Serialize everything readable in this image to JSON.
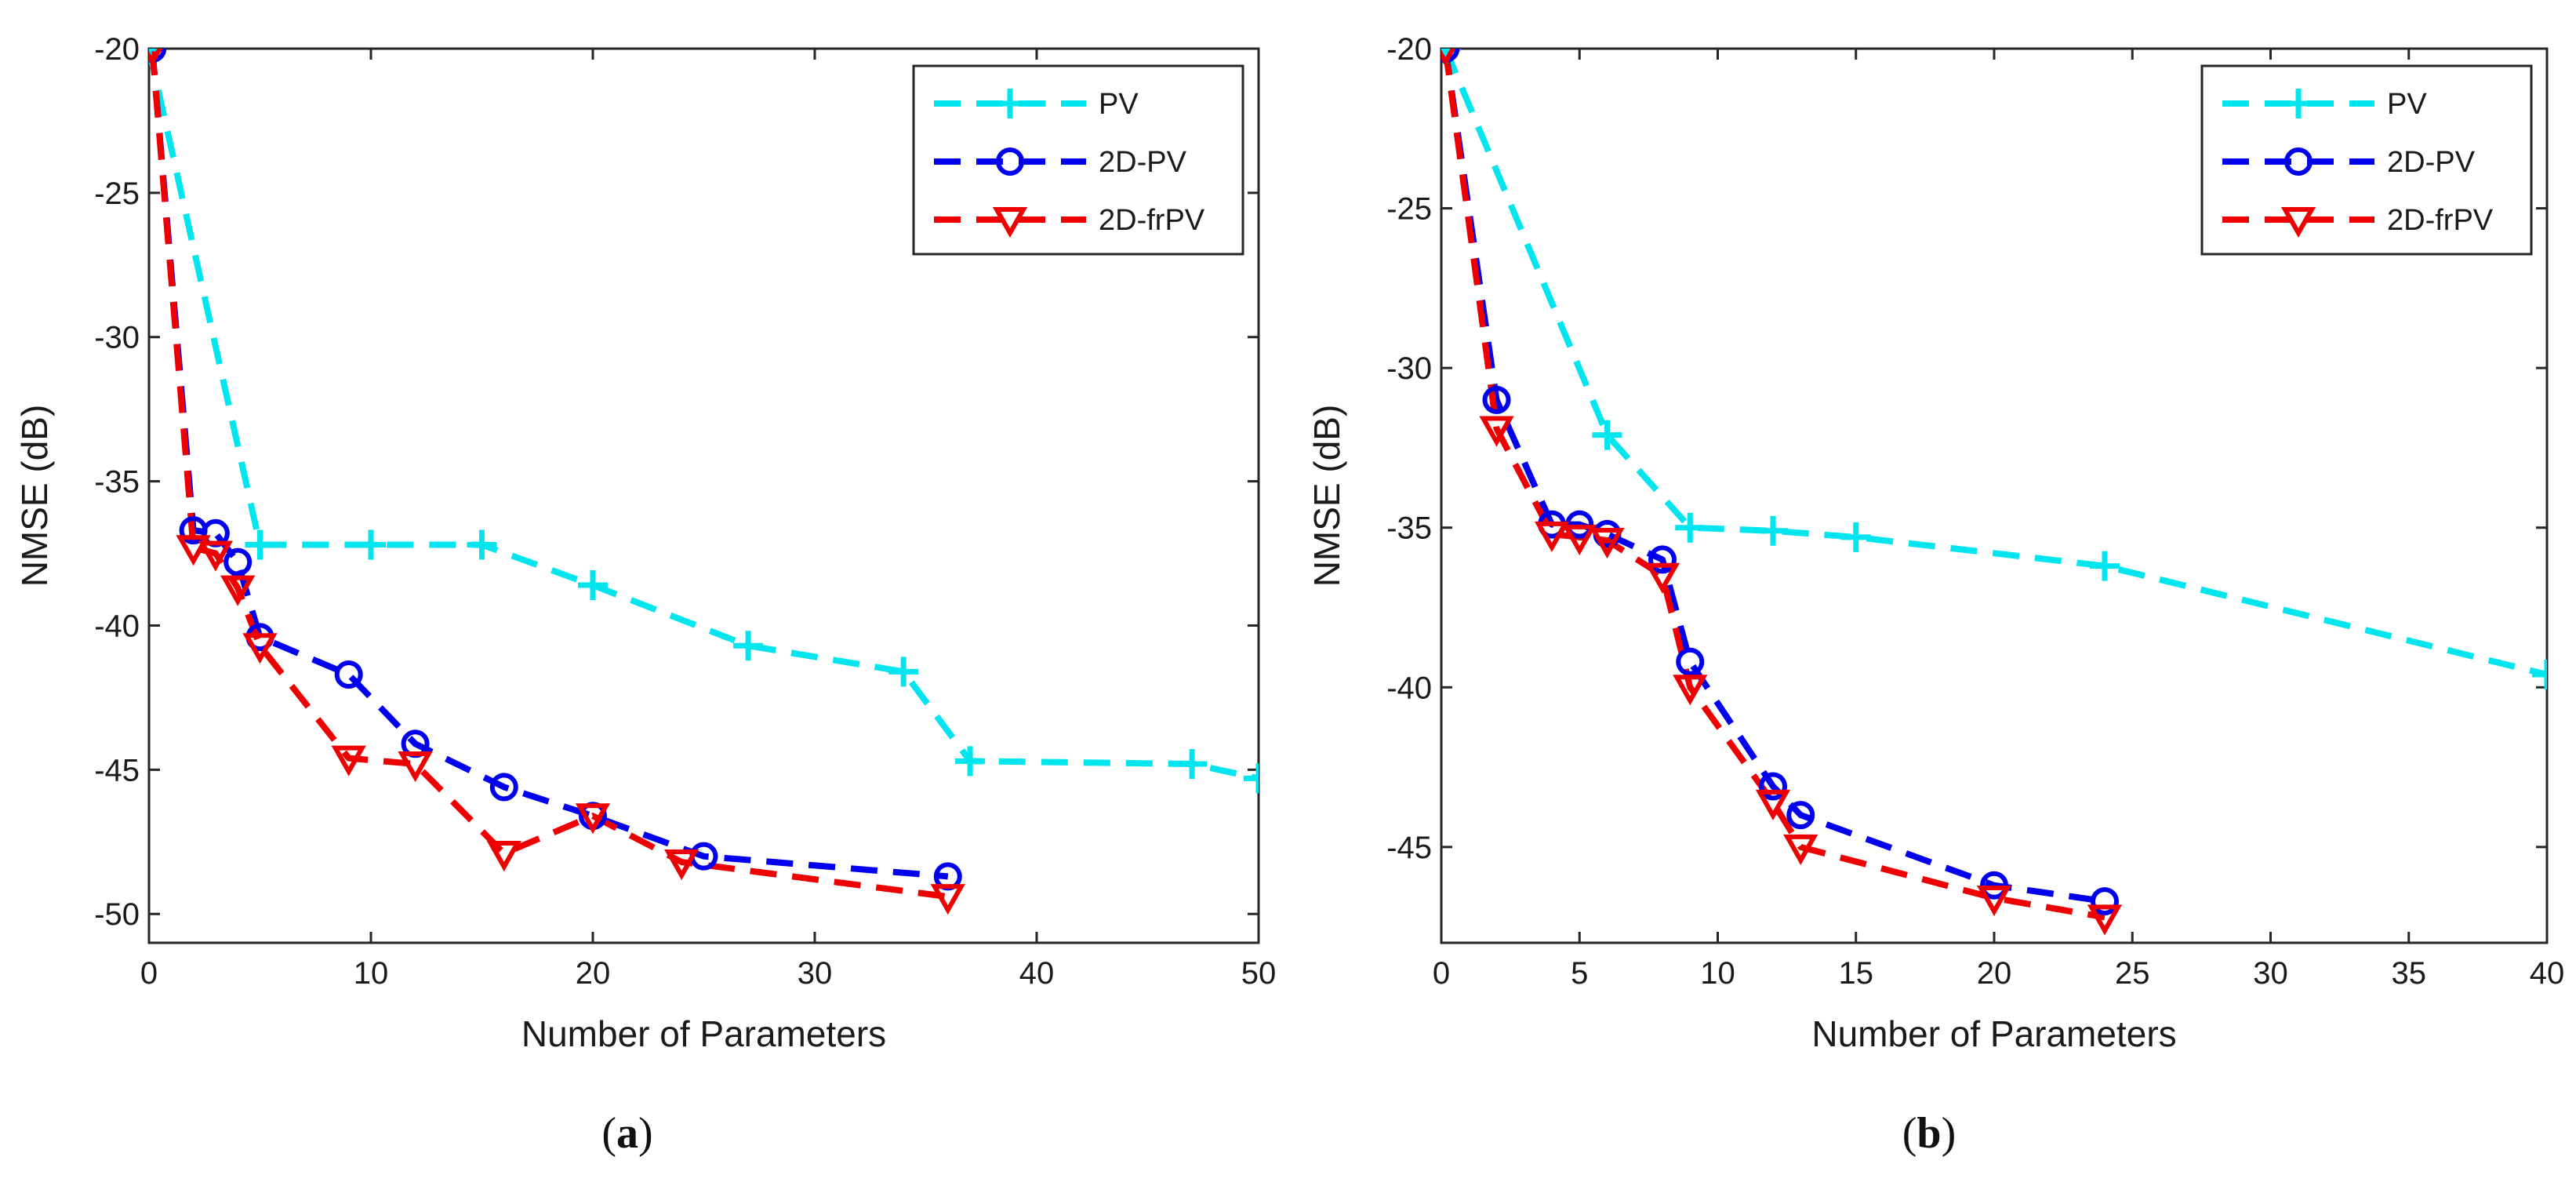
{
  "chart_data": [
    {
      "type": "line",
      "caption_open": "(",
      "caption_letter": "a",
      "caption_close": ")",
      "title": "",
      "xlabel": "Number of Parameters",
      "ylabel": "NMSE (dB)",
      "xlim": [
        0,
        50
      ],
      "ylim": [
        -51,
        -20
      ],
      "xticks": [
        0,
        10,
        20,
        30,
        40,
        50
      ],
      "yticks": [
        -20,
        -25,
        -30,
        -35,
        -40,
        -45,
        -50
      ],
      "grid": false,
      "legend_position": "top-right",
      "series": [
        {
          "name": "PV",
          "color": "#00e5ee",
          "marker": "plus",
          "x": [
            0,
            5,
            10,
            15,
            20,
            27,
            34,
            37,
            47,
            50
          ],
          "y": [
            -20,
            -37.2,
            -37.2,
            -37.2,
            -38.6,
            -40.7,
            -41.6,
            -44.7,
            -44.8,
            -45.3
          ]
        },
        {
          "name": "2D-PV",
          "color": "#0000ee",
          "marker": "circle",
          "x": [
            0.15,
            2,
            3,
            4,
            5,
            9,
            12,
            16,
            20,
            25,
            36
          ],
          "y": [
            -20,
            -36.7,
            -36.8,
            -37.8,
            -40.4,
            -41.7,
            -44.1,
            -45.6,
            -46.6,
            -48.0,
            -48.7
          ]
        },
        {
          "name": "2D-frPV",
          "color": "#ee0000",
          "marker": "triangle-down",
          "x": [
            0.15,
            2,
            3,
            4,
            5,
            9,
            12,
            16,
            20,
            24,
            36
          ],
          "y": [
            -20,
            -37.3,
            -37.5,
            -38.7,
            -40.7,
            -44.6,
            -44.8,
            -47.9,
            -46.6,
            -48.2,
            -49.4
          ]
        }
      ]
    },
    {
      "type": "line",
      "caption_open": "(",
      "caption_letter": "b",
      "caption_close": ")",
      "title": "",
      "xlabel": "Number of Parameters",
      "ylabel": "NMSE (dB)",
      "xlim": [
        0,
        40
      ],
      "ylim": [
        -48,
        -20
      ],
      "xticks": [
        0,
        5,
        10,
        15,
        20,
        25,
        30,
        35,
        40
      ],
      "yticks": [
        -20,
        -25,
        -30,
        -35,
        -40,
        -45
      ],
      "grid": false,
      "legend_position": "top-right",
      "series": [
        {
          "name": "PV",
          "color": "#00e5ee",
          "marker": "plus",
          "x": [
            0.15,
            6,
            9,
            12,
            15,
            24,
            40
          ],
          "y": [
            -20,
            -32.1,
            -35.0,
            -35.1,
            -35.3,
            -36.2,
            -39.6
          ]
        },
        {
          "name": "2D-PV",
          "color": "#0000ee",
          "marker": "circle",
          "x": [
            0.15,
            2,
            4,
            5,
            6,
            8,
            9,
            12,
            13,
            20,
            24
          ],
          "y": [
            -20,
            -31.0,
            -34.9,
            -34.9,
            -35.2,
            -36.0,
            -39.2,
            -43.1,
            -44.0,
            -46.2,
            -46.7
          ]
        },
        {
          "name": "2D-frPV",
          "color": "#ee0000",
          "marker": "triangle-down",
          "x": [
            0.15,
            2,
            4,
            5,
            6,
            8,
            9,
            12,
            13,
            20,
            24
          ],
          "y": [
            -20,
            -31.9,
            -35.2,
            -35.3,
            -35.4,
            -36.5,
            -40.0,
            -43.6,
            -45.0,
            -46.6,
            -47.2
          ]
        }
      ]
    }
  ]
}
